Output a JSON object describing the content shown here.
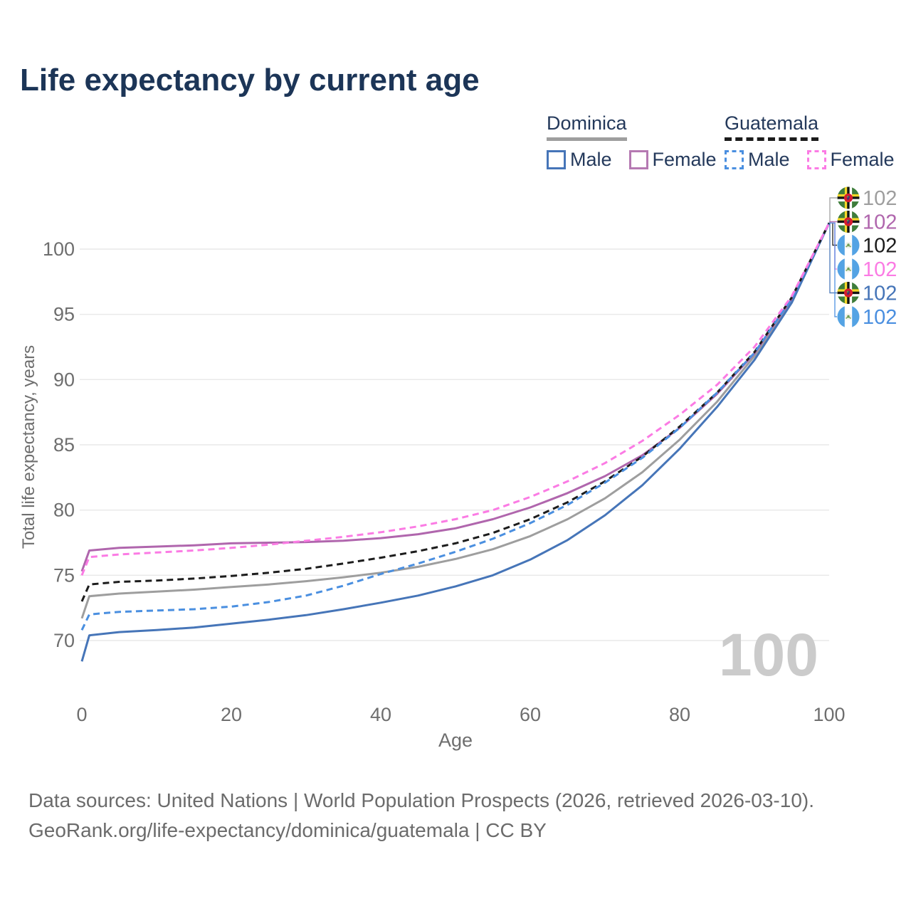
{
  "title": "Life expectancy by current age",
  "legend": {
    "groups": [
      {
        "country": "Dominica",
        "line_style": "solid",
        "line_color": "#9e9e9e",
        "items": [
          {
            "label": "Male",
            "color": "#4675b8",
            "dashed": false
          },
          {
            "label": "Female",
            "color": "#b579b2",
            "dashed": false
          }
        ]
      },
      {
        "country": "Guatemala",
        "line_style": "dashed",
        "line_color": "#1c1c1c",
        "items": [
          {
            "label": "Male",
            "color": "#4a8fe0",
            "dashed": true
          },
          {
            "label": "Female",
            "color": "#fb7be4",
            "dashed": true
          }
        ]
      }
    ]
  },
  "chart_data": {
    "type": "line",
    "title": "Life expectancy by current age",
    "xlabel": "Age",
    "ylabel": "Total life expectancy, years",
    "x_ticks": [
      0,
      20,
      40,
      60,
      80,
      100
    ],
    "y_ticks": [
      70,
      75,
      80,
      85,
      90,
      95,
      100
    ],
    "xlim": [
      0,
      100
    ],
    "ylim": [
      66,
      103
    ],
    "grid": "horizontal",
    "legend_position": "top-right",
    "watermark": "100",
    "x": [
      0,
      1,
      5,
      10,
      15,
      20,
      25,
      30,
      35,
      40,
      45,
      50,
      55,
      60,
      65,
      70,
      75,
      80,
      85,
      90,
      95,
      100
    ],
    "series": [
      {
        "name": "Dominica",
        "color": "#9e9e9e",
        "dash": false,
        "values": [
          71.7,
          73.4,
          73.6,
          73.75,
          73.9,
          74.1,
          74.3,
          74.55,
          74.85,
          75.2,
          75.65,
          76.25,
          77.0,
          78.0,
          79.3,
          80.9,
          82.9,
          85.4,
          88.3,
          91.8,
          96.0,
          102
        ]
      },
      {
        "name": "Dominica Female",
        "color": "#b066ad",
        "dash": false,
        "values": [
          75.3,
          76.9,
          77.1,
          77.2,
          77.3,
          77.45,
          77.5,
          77.55,
          77.65,
          77.85,
          78.15,
          78.6,
          79.3,
          80.2,
          81.3,
          82.6,
          84.2,
          86.3,
          88.9,
          92.0,
          96.2,
          102
        ]
      },
      {
        "name": "Dominica Male",
        "color": "#4675b8",
        "dash": false,
        "values": [
          68.4,
          70.4,
          70.65,
          70.8,
          71.0,
          71.3,
          71.6,
          71.95,
          72.4,
          72.9,
          73.45,
          74.15,
          75.0,
          76.2,
          77.7,
          79.6,
          81.9,
          84.7,
          87.9,
          91.5,
          95.9,
          102
        ]
      },
      {
        "name": "Guatemala",
        "color": "#1c1c1c",
        "dash": true,
        "values": [
          73.0,
          74.3,
          74.5,
          74.6,
          74.75,
          74.95,
          75.2,
          75.5,
          75.9,
          76.35,
          76.85,
          77.45,
          78.25,
          79.3,
          80.6,
          82.2,
          84.1,
          86.4,
          89.0,
          92.1,
          96.3,
          102
        ]
      },
      {
        "name": "Guatemala Male",
        "color": "#4a8fe0",
        "dash": true,
        "values": [
          70.8,
          72.0,
          72.2,
          72.3,
          72.4,
          72.6,
          72.95,
          73.45,
          74.2,
          75.1,
          75.9,
          76.8,
          77.8,
          79.0,
          80.4,
          82.1,
          84.0,
          86.3,
          89.0,
          92.05,
          96.2,
          102
        ]
      },
      {
        "name": "Guatemala Female",
        "color": "#fb7be4",
        "dash": true,
        "values": [
          75.0,
          76.4,
          76.6,
          76.75,
          76.9,
          77.1,
          77.35,
          77.65,
          77.95,
          78.3,
          78.75,
          79.3,
          80.0,
          81.0,
          82.2,
          83.6,
          85.3,
          87.3,
          89.6,
          92.5,
          96.4,
          102
        ]
      }
    ],
    "end_labels": [
      {
        "flag": "dominica",
        "value": "102",
        "color": "#9e9e9e"
      },
      {
        "flag": "dominica",
        "value": "102",
        "color": "#b066ad"
      },
      {
        "flag": "guatemala",
        "value": "102",
        "color": "#1c1c1c"
      },
      {
        "flag": "guatemala",
        "value": "102",
        "color": "#fb7be4"
      },
      {
        "flag": "dominica",
        "value": "102",
        "color": "#4675b8"
      },
      {
        "flag": "guatemala",
        "value": "102",
        "color": "#4a8fe0"
      }
    ]
  },
  "footer": {
    "line1": "Data sources: United Nations | World Population Prospects (2026, retrieved 2026-03-10).",
    "line2": "GeoRank.org/life-expectancy/dominica/guatemala | CC BY"
  }
}
